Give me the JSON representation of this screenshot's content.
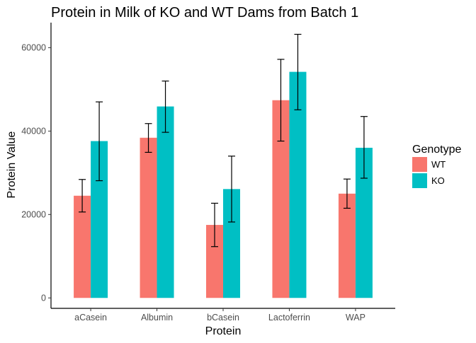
{
  "chart_data": {
    "type": "bar",
    "title": "Protein in Milk of KO and WT Dams from Batch 1",
    "xlabel": "Protein",
    "ylabel": "Protein Value",
    "categories": [
      "aCasein",
      "Albumin",
      "bCasein",
      "Lactoferrin",
      "WAP"
    ],
    "ylim": [
      -2500,
      66000
    ],
    "yticks": [
      0,
      20000,
      40000,
      60000
    ],
    "legend_title": "Genotype",
    "legend_position": "right",
    "grid": false,
    "series": [
      {
        "name": "WT",
        "color": "#F8766D",
        "values": [
          24500,
          38400,
          17500,
          47400,
          25000
        ],
        "error_low": [
          20600,
          34900,
          12300,
          37600,
          21500
        ],
        "error_high": [
          28400,
          41800,
          22700,
          57200,
          28500
        ]
      },
      {
        "name": "KO",
        "color": "#00BFC4",
        "values": [
          37600,
          45900,
          26100,
          54200,
          36000
        ],
        "error_low": [
          28100,
          39700,
          18200,
          45100,
          28700
        ],
        "error_high": [
          47000,
          52000,
          34000,
          63200,
          43500
        ]
      }
    ]
  }
}
